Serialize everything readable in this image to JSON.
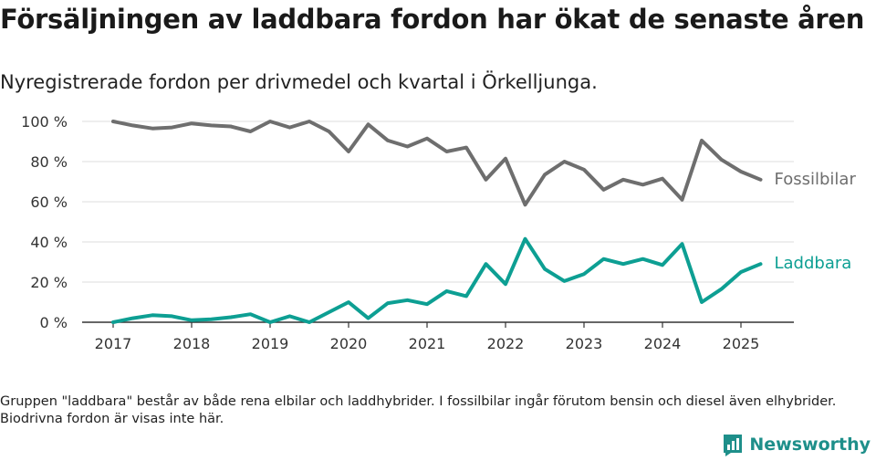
{
  "title": "Försäljningen av laddbara fordon har ökat de senaste åren",
  "subtitle": "Nyregistrerade fordon per drivmedel och kvartal i Örkelljunga.",
  "footnote": "Gruppen \"laddbara\" består av både rena elbilar och laddhybrider. I fossilbilar ingår förutom bensin och diesel även elhybrider. Biodrivna fordon är visas inte här.",
  "brand": {
    "name": "Newsworthy",
    "icon": "newsworthy-logo-icon",
    "color": "#1e8f8a"
  },
  "chart_data": {
    "type": "line",
    "x_start": "2017Q1",
    "x_step": "quarter",
    "x_ticks": [
      "2017",
      "2018",
      "2019",
      "2020",
      "2021",
      "2022",
      "2023",
      "2024",
      "2025"
    ],
    "y_ticks": [
      "0 %",
      "20 %",
      "40 %",
      "60 %",
      "80 %",
      "100 %"
    ],
    "ylim": [
      0,
      100
    ],
    "y_unit": "%",
    "grid": true,
    "legend": "inline labels at line ends",
    "series": [
      {
        "name": "Fossilbilar",
        "color": "#6e6e6e",
        "values": [
          100,
          98,
          96.5,
          97,
          99,
          98,
          97.5,
          95,
          100,
          97,
          100,
          95,
          85,
          98.5,
          90.5,
          87.5,
          91.5,
          85,
          87,
          71,
          81.5,
          58.5,
          73.5,
          80,
          76,
          66,
          71,
          68.5,
          71.5,
          61,
          90.5,
          81,
          75,
          71
        ]
      },
      {
        "name": "Laddbara",
        "color": "#0d9f93",
        "values": [
          0,
          2,
          3.5,
          3,
          1,
          1.5,
          2.5,
          4,
          0,
          3,
          0,
          5,
          10,
          2,
          9.5,
          11,
          9,
          15.5,
          13,
          29,
          19,
          41.5,
          26.5,
          20.5,
          24,
          31.5,
          29,
          31.5,
          28.5,
          39,
          10,
          16.5,
          25,
          29
        ]
      }
    ]
  }
}
